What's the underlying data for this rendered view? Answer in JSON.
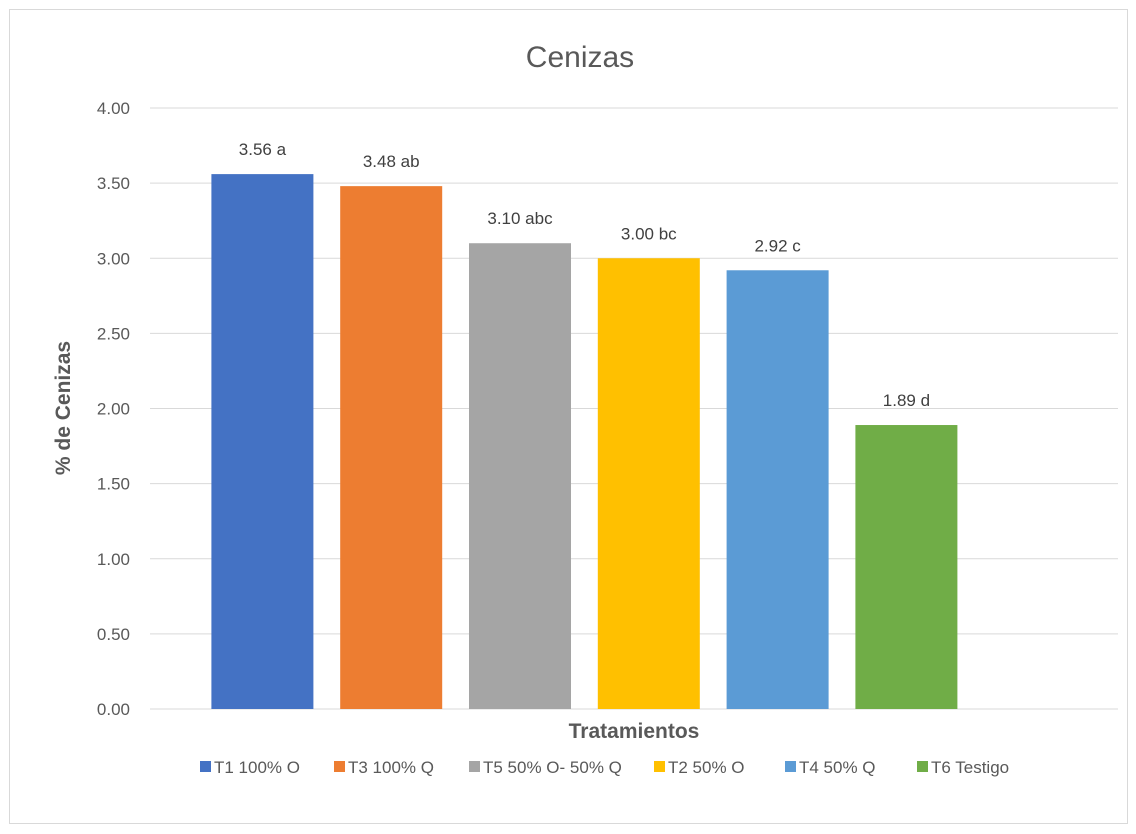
{
  "chart_data": {
    "type": "bar",
    "title": "Cenizas",
    "xlabel": "Tratamientos",
    "ylabel": "% de Cenizas",
    "ylim": [
      0,
      4
    ],
    "ytick_step": 0.5,
    "yticks": [
      "0.00",
      "0.50",
      "1.00",
      "1.50",
      "2.00",
      "2.50",
      "3.00",
      "3.50",
      "4.00"
    ],
    "grid": true,
    "legend_position": "bottom",
    "series": [
      {
        "name": "T1 100% O",
        "value": 3.56,
        "label": "3.56 a",
        "color": "#4472c4"
      },
      {
        "name": "T3 100% Q",
        "value": 3.48,
        "label": "3.48 ab",
        "color": "#ed7d31"
      },
      {
        "name": "T5 50% O- 50% Q",
        "value": 3.1,
        "label": "3.10 abc",
        "color": "#a5a5a5"
      },
      {
        "name": "T2 50% O",
        "value": 3.0,
        "label": "3.00 bc",
        "color": "#ffc000"
      },
      {
        "name": "T4 50% Q",
        "value": 2.92,
        "label": "2.92 c",
        "color": "#5b9bd5"
      },
      {
        "name": "T6 Testigo",
        "value": 1.89,
        "label": "1.89 d",
        "color": "#70ad47"
      }
    ]
  }
}
